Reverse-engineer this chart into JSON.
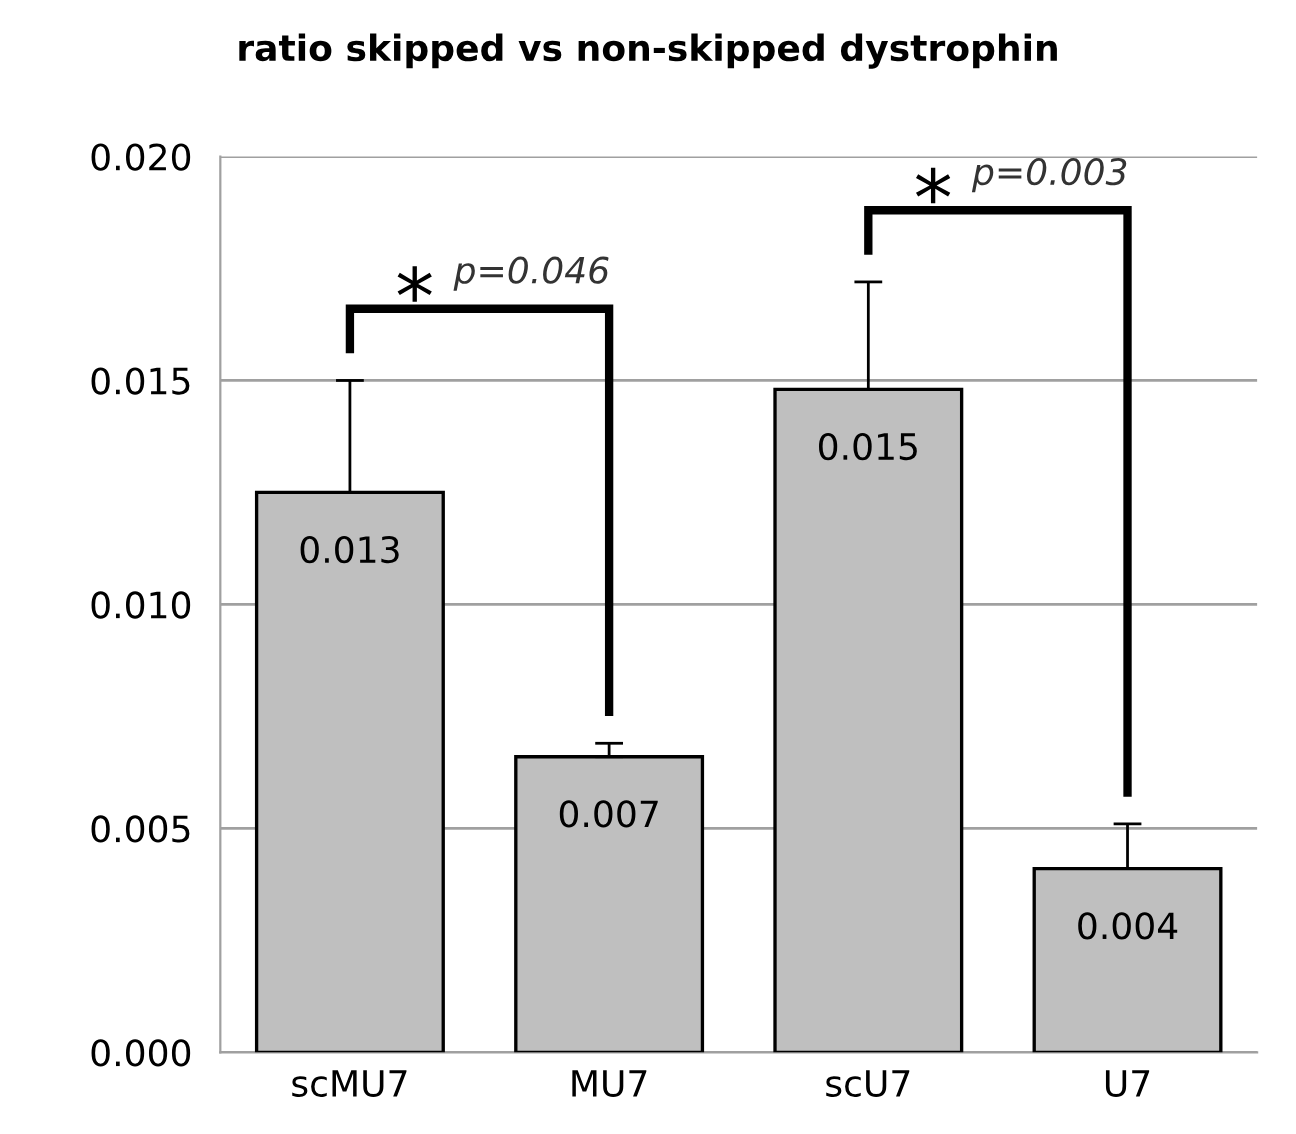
{
  "chart_data": {
    "type": "bar",
    "title": "ratio skipped vs non-skipped dystrophin",
    "categories": [
      "scMU7",
      "MU7",
      "scU7",
      "U7"
    ],
    "values": [
      0.0125,
      0.0066,
      0.0148,
      0.0041
    ],
    "errors": [
      0.0025,
      0.0003,
      0.0024,
      0.001
    ],
    "value_labels": [
      "0.013",
      "0.007",
      "0.015",
      "0.004"
    ],
    "color": "#bfbfbf",
    "ylim": [
      0,
      0.02
    ],
    "yticks": [
      {
        "value": 0,
        "label": "0.000"
      },
      {
        "value": 0.005,
        "label": "0.005"
      },
      {
        "value": 0.01,
        "label": "0.010"
      },
      {
        "value": 0.015,
        "label": "0.015"
      },
      {
        "value": 0.02,
        "label": "0.020"
      }
    ],
    "grid": "y",
    "annotations": [
      "*",
      "p=0.046",
      "*",
      "p=0.003"
    ]
  }
}
